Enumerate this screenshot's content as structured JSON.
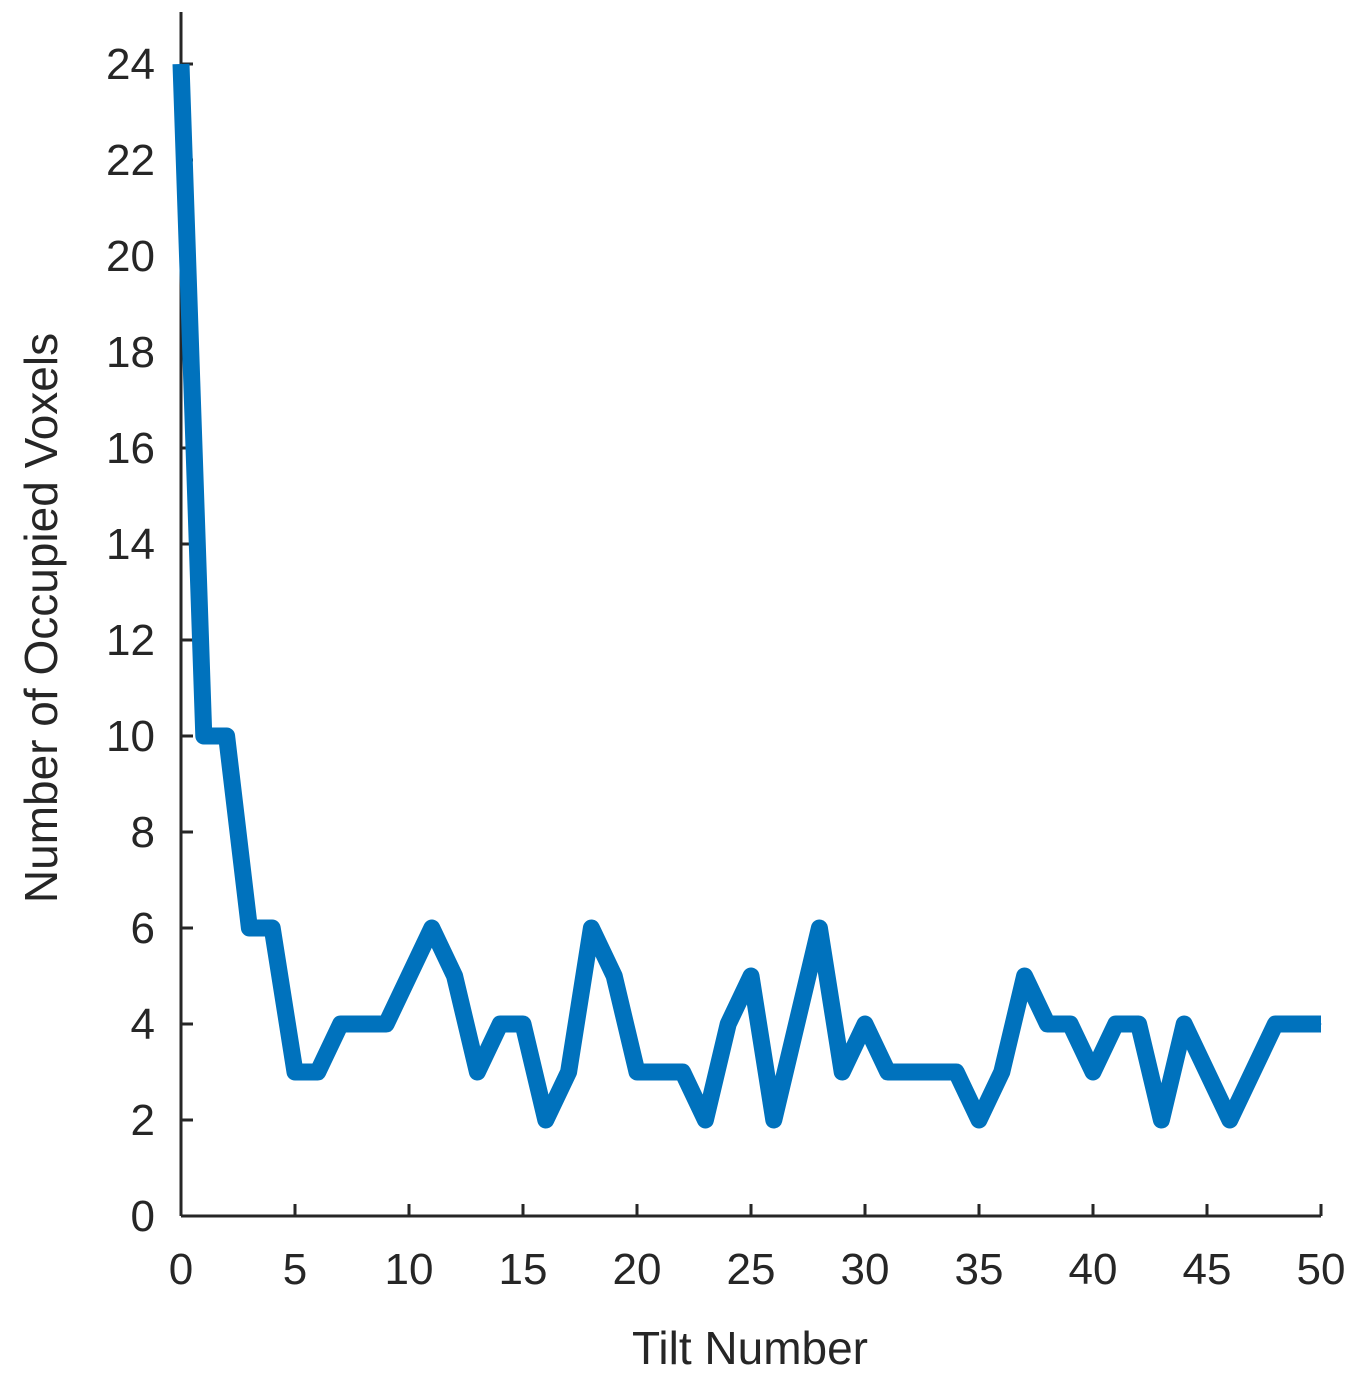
{
  "chart_data": {
    "type": "line",
    "title": "",
    "xlabel": "Tilt Number",
    "ylabel": "Number of Occupied Voxels",
    "xlim": [
      0,
      50
    ],
    "ylim": [
      0,
      25
    ],
    "xticks": [
      0,
      5,
      10,
      15,
      20,
      25,
      30,
      35,
      40,
      45,
      50
    ],
    "yticks": [
      0,
      2,
      4,
      6,
      8,
      10,
      12,
      14,
      16,
      18,
      20,
      22,
      24
    ],
    "grid": false,
    "legend": "none",
    "series": [
      {
        "color": "#0072BD",
        "x": [
          0,
          1,
          2,
          3,
          4,
          5,
          6,
          7,
          8,
          9,
          10,
          11,
          12,
          13,
          14,
          15,
          16,
          17,
          18,
          19,
          20,
          21,
          22,
          23,
          24,
          25,
          26,
          27,
          28,
          29,
          30,
          31,
          32,
          33,
          34,
          35,
          36,
          37,
          38,
          39,
          40,
          41,
          42,
          43,
          44,
          45,
          46,
          47,
          48,
          49,
          50
        ],
        "values": [
          24,
          10,
          10,
          6,
          6,
          3,
          3,
          4,
          4,
          4,
          5,
          6,
          5,
          3,
          4,
          4,
          2,
          3,
          6,
          5,
          3,
          3,
          3,
          2,
          4,
          5,
          2,
          4,
          6,
          3,
          4,
          3,
          3,
          3,
          3,
          2,
          3,
          5,
          4,
          4,
          3,
          4,
          4,
          2,
          4,
          3,
          2,
          3,
          4,
          4,
          4
        ]
      }
    ]
  }
}
